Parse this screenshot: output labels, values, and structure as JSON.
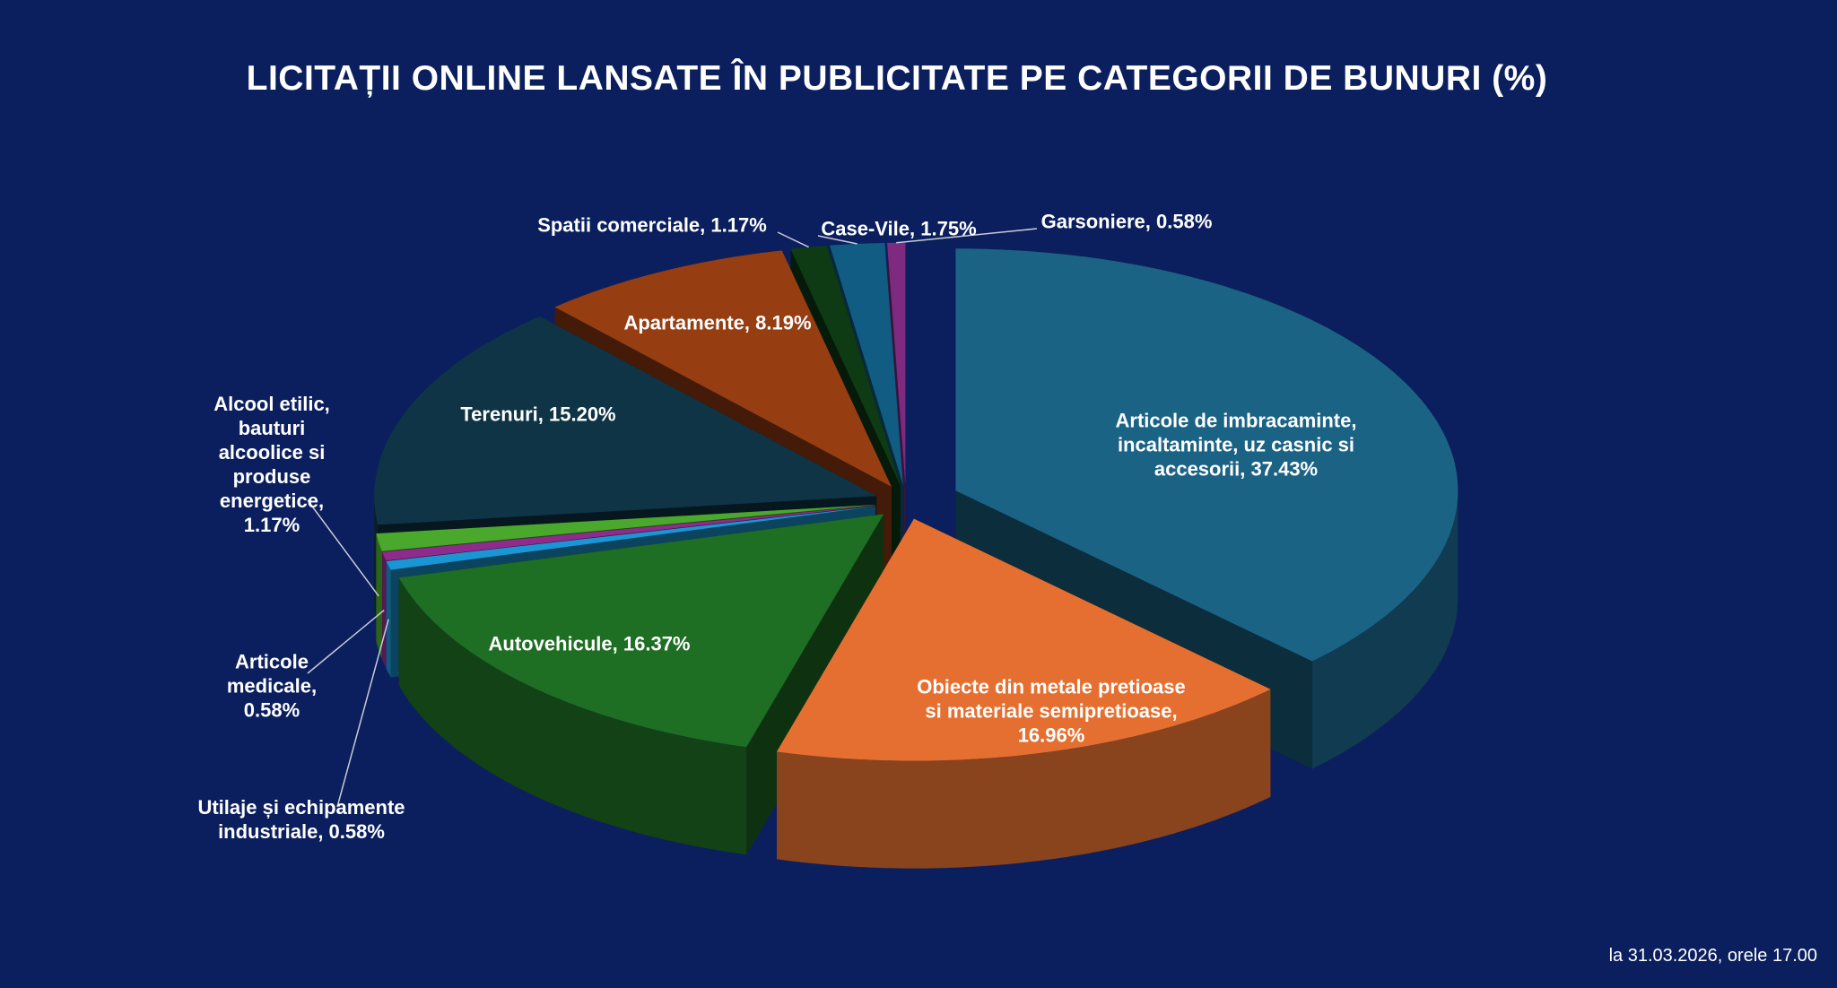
{
  "chart_data": {
    "type": "pie",
    "title": "LICITAȚII ONLINE LANSATE ÎN PUBLICITATE PE CATEGORII DE BUNURI (%)",
    "categories": [
      "Articole de imbracaminte, incaltaminte, uz casnic si accesorii",
      "Obiecte din metale pretioase si materiale semipretioase",
      "Autovehicule",
      "Utilaje și echipamente industriale",
      "Articole medicale",
      "Alcool etilic, bauturi alcoolice si produse energetice",
      "Terenuri",
      "Apartamente",
      "Spatii comerciale",
      "Case-Vile",
      "Garsoniere"
    ],
    "values": [
      37.43,
      16.96,
      16.37,
      0.58,
      0.58,
      1.17,
      15.2,
      8.19,
      1.17,
      1.75,
      0.58
    ],
    "value_labels": [
      "37.43%",
      "16.96%",
      "16.37%",
      "0.58%",
      "0.58%",
      "1.17%",
      "15.20%",
      "8.19%",
      "1.17%",
      "1.75%",
      "0.58%"
    ],
    "label_separator": ", ",
    "colors": [
      "#1b6385",
      "#e56f30",
      "#1e6e23",
      "#1a96d4",
      "#8e2b8c",
      "#4aa82c",
      "#0f3445",
      "#963d12",
      "#0e3a14",
      "#105c82",
      "#7d2a80"
    ],
    "note": "la 31.03.2026, orele 17.00"
  }
}
